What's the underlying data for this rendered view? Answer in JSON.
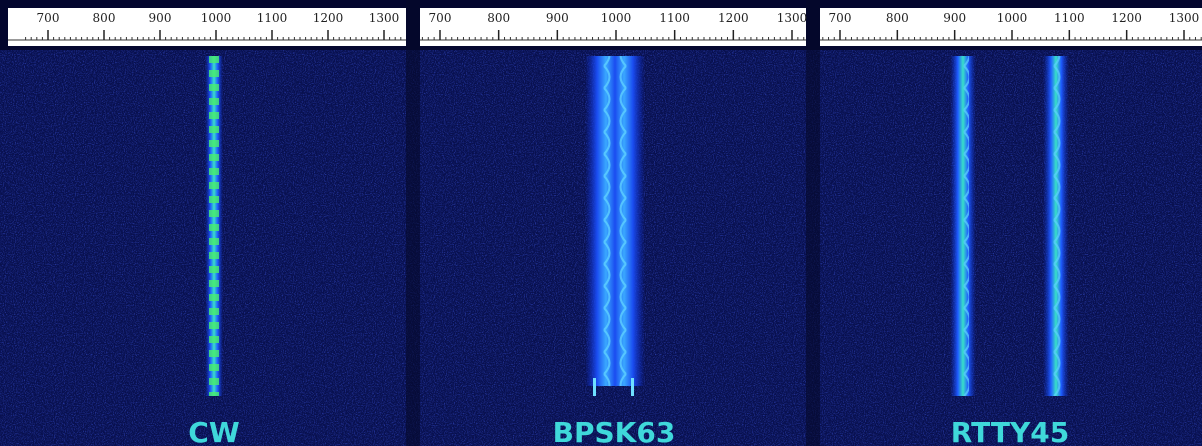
{
  "panels": [
    {
      "scale": {
        "ticks": [
          700,
          800,
          900,
          1000,
          1100,
          1200,
          1300
        ]
      },
      "label": "CW"
    },
    {
      "scale": {
        "ticks": [
          700,
          800,
          900,
          1000,
          1100,
          1200,
          1300
        ]
      },
      "label": "BPSK63"
    },
    {
      "scale": {
        "ticks": [
          700,
          800,
          900,
          1000,
          1100,
          1200,
          1300
        ]
      },
      "label": "RTTY45"
    }
  ]
}
